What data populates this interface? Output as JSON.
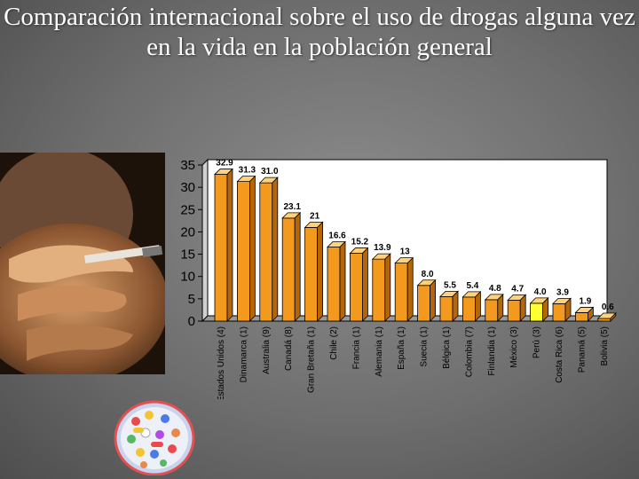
{
  "title": "Comparación internacional sobre el uso de drogas alguna vez en la vida en la población general",
  "images": {
    "smoker": "smoking-hand-photo",
    "pills": "pills-bowl-photo"
  },
  "chart_data": {
    "type": "bar",
    "title": "",
    "xlabel": "",
    "ylabel": "",
    "ylim": [
      0,
      35
    ],
    "yticks": [
      0,
      5,
      10,
      15,
      20,
      25,
      30,
      35
    ],
    "grid": false,
    "legend": "none",
    "bar_color": "#f39a1e",
    "highlight_color": "#ffff33",
    "highlight_index": 14,
    "categories": [
      "Estados Unidos (4)",
      "Dinamarca (1)",
      "Australia (9)",
      "Canadá (8)",
      "Gran Bretaña (1)",
      "Chile (2)",
      "Francia (1)",
      "Alemania (1)",
      "España (1)",
      "Suecia (1)",
      "Bélgica (1)",
      "Colombia (7)",
      "Finlandia (1)",
      "México (3)",
      "Perú (3)",
      "Costa Rica (6)",
      "Panamá (5)",
      "Bolivia (5)"
    ],
    "values": [
      32.9,
      31.3,
      31.0,
      23.1,
      21,
      16.6,
      15.2,
      13.9,
      13,
      8.0,
      5.5,
      5.4,
      4.8,
      4.7,
      4.0,
      3.9,
      1.9,
      0.6
    ],
    "value_labels": [
      "32.9",
      "31.3",
      "31.0",
      "23.1",
      "21",
      "16.6",
      "15.2",
      "13.9",
      "13",
      "8.0",
      "5.5",
      "5.4",
      "4.8",
      "4.7",
      "4.0",
      "3.9",
      "1.9",
      "0.6"
    ]
  }
}
